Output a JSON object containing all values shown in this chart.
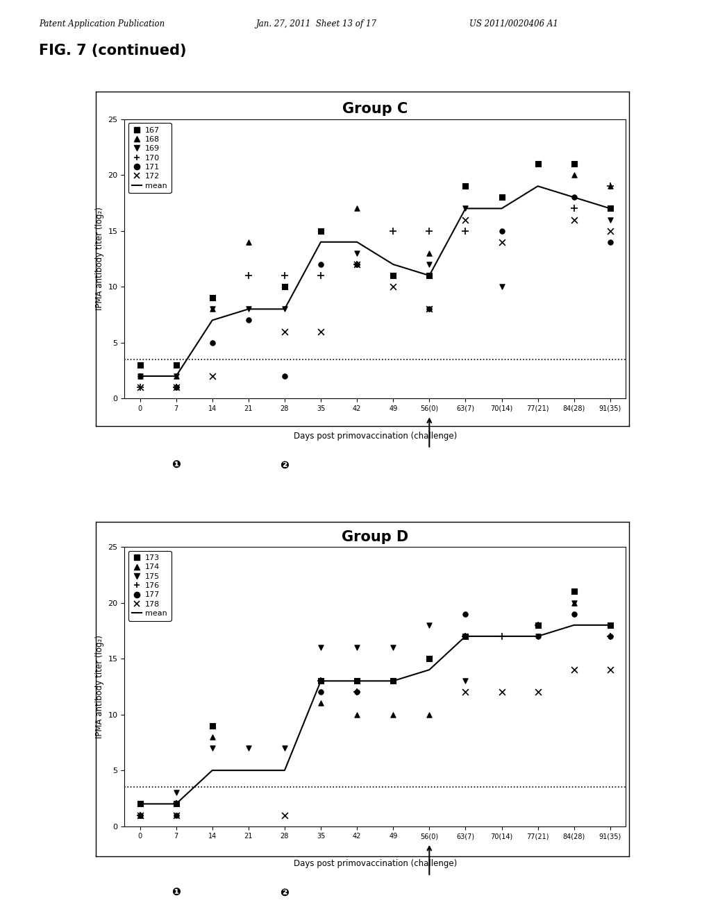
{
  "header_left": "Patent Application Publication",
  "header_mid": "Jan. 27, 2011  Sheet 13 of 17",
  "header_right": "US 2011/0020406 A1",
  "fig_label": "FIG. 7 (continued)",
  "group_c_title": "Group C",
  "group_d_title": "Group D",
  "ylabel": "IPMA antibody titer (log₂)",
  "xlabel": "Days post primovaccination (challenge)",
  "xtick_labels": [
    "0",
    "7",
    "14",
    "21",
    "28",
    "35",
    "42",
    "49",
    "56(0)",
    "63(7)",
    "70(14)",
    "77(21)",
    "84(28)",
    "91(35)"
  ],
  "xtick_positions": [
    0,
    7,
    14,
    21,
    28,
    35,
    42,
    49,
    56,
    63,
    70,
    77,
    84,
    91
  ],
  "ylim": [
    0,
    25
  ],
  "yticks": [
    0,
    5,
    10,
    15,
    20,
    25
  ],
  "threshold": 3.5,
  "vaccine1_x": 7,
  "vaccine2_x": 28,
  "challenge_x": 56,
  "group_c": {
    "legend_labels": [
      "167",
      "168",
      "169",
      "170",
      "171",
      "172",
      "mean"
    ],
    "series_167": {
      "x": [
        0,
        7,
        14,
        21,
        28,
        35,
        42,
        49,
        56,
        63,
        70,
        77,
        84,
        91
      ],
      "y": [
        3,
        3,
        9,
        null,
        10,
        15,
        null,
        11,
        11,
        19,
        18,
        21,
        21,
        17
      ]
    },
    "series_168": {
      "x": [
        0,
        7,
        14,
        21,
        28,
        35,
        42,
        49,
        56,
        63,
        70,
        77,
        84,
        91
      ],
      "y": [
        2,
        2,
        8,
        14,
        null,
        15,
        17,
        null,
        13,
        null,
        18,
        null,
        20,
        19
      ]
    },
    "series_169": {
      "x": [
        0,
        7,
        14,
        21,
        28,
        35,
        42,
        49,
        56,
        63,
        70,
        77,
        84,
        91
      ],
      "y": [
        2,
        2,
        8,
        8,
        8,
        null,
        13,
        null,
        12,
        17,
        10,
        null,
        null,
        16
      ]
    },
    "series_170": {
      "x": [
        0,
        7,
        14,
        21,
        28,
        35,
        42,
        49,
        56,
        63,
        70,
        77,
        84,
        91
      ],
      "y": [
        1,
        1,
        null,
        11,
        11,
        11,
        12,
        15,
        15,
        15,
        null,
        null,
        17,
        19
      ]
    },
    "series_171": {
      "x": [
        0,
        7,
        14,
        21,
        28,
        35,
        42,
        49,
        56,
        63,
        70,
        77,
        84,
        91
      ],
      "y": [
        2,
        1,
        5,
        7,
        2,
        12,
        12,
        null,
        8,
        null,
        15,
        null,
        18,
        14
      ]
    },
    "series_172": {
      "x": [
        0,
        7,
        14,
        21,
        28,
        35,
        42,
        49,
        56,
        63,
        70,
        77,
        84,
        91
      ],
      "y": [
        1,
        1,
        2,
        null,
        6,
        6,
        12,
        10,
        8,
        16,
        14,
        null,
        16,
        15
      ]
    },
    "mean": {
      "x": [
        0,
        7,
        14,
        21,
        28,
        35,
        42,
        49,
        56,
        63,
        70,
        77,
        84,
        91
      ],
      "y": [
        2,
        2,
        7,
        8,
        8,
        14,
        14,
        12,
        11,
        17,
        17,
        19,
        18,
        17
      ]
    }
  },
  "group_d": {
    "legend_labels": [
      "173",
      "174",
      "175",
      "176",
      "177",
      "178",
      "mean"
    ],
    "series_173": {
      "x": [
        0,
        7,
        14,
        21,
        28,
        35,
        42,
        49,
        56,
        63,
        70,
        77,
        84,
        91
      ],
      "y": [
        2,
        2,
        9,
        null,
        null,
        13,
        13,
        13,
        15,
        17,
        null,
        18,
        21,
        18
      ]
    },
    "series_174": {
      "x": [
        0,
        7,
        14,
        21,
        28,
        35,
        42,
        49,
        56,
        63,
        70,
        77,
        84,
        91
      ],
      "y": [
        1,
        2,
        8,
        null,
        null,
        11,
        10,
        10,
        10,
        null,
        null,
        null,
        20,
        18
      ]
    },
    "series_175": {
      "x": [
        0,
        7,
        14,
        21,
        28,
        35,
        42,
        49,
        56,
        63,
        70,
        77,
        84,
        91
      ],
      "y": [
        2,
        3,
        7,
        7,
        7,
        16,
        16,
        16,
        18,
        13,
        null,
        17,
        20,
        18
      ]
    },
    "series_176": {
      "x": [
        0,
        7,
        14,
        21,
        28,
        35,
        42,
        49,
        56,
        63,
        70,
        77,
        84,
        91
      ],
      "y": [
        1,
        2,
        null,
        null,
        null,
        13,
        12,
        null,
        null,
        17,
        17,
        18,
        null,
        17
      ]
    },
    "series_177": {
      "x": [
        0,
        7,
        14,
        21,
        28,
        35,
        42,
        49,
        56,
        63,
        70,
        77,
        84,
        91
      ],
      "y": [
        1,
        1,
        null,
        null,
        null,
        12,
        12,
        null,
        null,
        19,
        null,
        17,
        19,
        17
      ]
    },
    "series_178": {
      "x": [
        0,
        7,
        14,
        21,
        28,
        35,
        42,
        49,
        56,
        63,
        70,
        77,
        84,
        91
      ],
      "y": [
        1,
        1,
        null,
        null,
        1,
        null,
        null,
        null,
        null,
        12,
        12,
        12,
        14,
        14
      ]
    },
    "mean": {
      "x": [
        0,
        7,
        14,
        21,
        28,
        35,
        42,
        49,
        56,
        63,
        70,
        77,
        84,
        91
      ],
      "y": [
        2,
        2,
        5,
        5,
        5,
        13,
        13,
        13,
        14,
        17,
        17,
        17,
        18,
        18
      ]
    }
  },
  "background_color": "#ffffff",
  "plot_bg_color": "#ffffff",
  "border_color": "#000000",
  "mean_line_color": "#000000",
  "threshold_line_color": "#000000",
  "marker_color": "#000000"
}
